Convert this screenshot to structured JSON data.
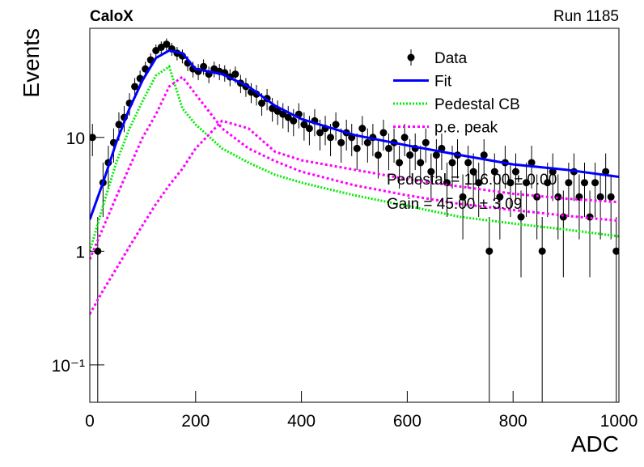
{
  "chart_data": {
    "type": "line",
    "title": "CaloX",
    "subtitle": "Run 1185",
    "x_label": "ADC",
    "y_label": "Events",
    "log_y": true,
    "xlim": [
      0,
      1000
    ],
    "ylim": [
      0.047,
      91
    ],
    "xticks": [
      0,
      200,
      400,
      600,
      800,
      1000
    ],
    "yticks": [
      {
        "value": 0.1,
        "label": "10⁻¹"
      },
      1,
      10
    ],
    "legend": "top-right",
    "annotations": [
      "Pedestal = 116.00 ± 0.00",
      "Gain = 45.00 ± 3.09"
    ],
    "series": [
      {
        "name": "Data",
        "color": "#000000",
        "style": "points",
        "x": [
          5,
          15,
          25,
          35,
          45,
          55,
          65,
          75,
          85,
          95,
          105,
          115,
          125,
          135,
          145,
          155,
          165,
          175,
          185,
          195,
          205,
          215,
          225,
          235,
          245,
          255,
          265,
          275,
          285,
          295,
          305,
          315,
          325,
          335,
          345,
          355,
          365,
          375,
          385,
          395,
          405,
          415,
          425,
          435,
          445,
          455,
          465,
          475,
          485,
          495,
          505,
          515,
          525,
          535,
          545,
          555,
          565,
          575,
          585,
          595,
          605,
          615,
          625,
          635,
          645,
          655,
          665,
          675,
          685,
          695,
          705,
          715,
          725,
          735,
          745,
          755,
          765,
          775,
          785,
          795,
          805,
          815,
          825,
          835,
          845,
          855,
          865,
          875,
          885,
          895,
          905,
          915,
          925,
          935,
          945,
          955,
          965,
          975,
          985,
          995
        ],
        "values": [
          10,
          1,
          4,
          6,
          9,
          13,
          15,
          20,
          28,
          33,
          40,
          48,
          58,
          62,
          66,
          60,
          55,
          52,
          45,
          40,
          38,
          42,
          36,
          40,
          38,
          37,
          34,
          36,
          30,
          28,
          25,
          24,
          20,
          22,
          18,
          17,
          16,
          15,
          14,
          16,
          13,
          12,
          14,
          11,
          12,
          10,
          13,
          9,
          11,
          10,
          8,
          12,
          9,
          10,
          7,
          11,
          8,
          9,
          6,
          10,
          7,
          8,
          6,
          9,
          5,
          7,
          8,
          4,
          6,
          7,
          3,
          6,
          5,
          4,
          7,
          1,
          5,
          3,
          6,
          4,
          5,
          2,
          4,
          6,
          3,
          1,
          4,
          5,
          3,
          2,
          4,
          5,
          3,
          4,
          2,
          4,
          3,
          5,
          3,
          1
        ],
        "errors": [
          3.16,
          1,
          2,
          2.45,
          3,
          3.61,
          3.87,
          4.47,
          5.29,
          5.74,
          6.32,
          6.93,
          7.62,
          7.87,
          8.12,
          7.75,
          7.42,
          7.21,
          6.71,
          6.32,
          6.16,
          6.48,
          6,
          6.32,
          6.16,
          6.08,
          5.83,
          6,
          5.48,
          5.29,
          5,
          4.9,
          4.47,
          4.69,
          4.24,
          4.12,
          4,
          3.87,
          3.74,
          4,
          3.61,
          3.46,
          3.74,
          3.32,
          3.46,
          3.16,
          3.61,
          3,
          3.32,
          3.16,
          2.83,
          3.46,
          3,
          3.16,
          2.65,
          3.32,
          2.83,
          3,
          2.45,
          3.16,
          2.65,
          2.83,
          2.45,
          3,
          2.24,
          2.65,
          2.83,
          2,
          2.45,
          2.65,
          1.73,
          2.45,
          2.24,
          2,
          2.65,
          1,
          2.24,
          1.73,
          2.45,
          2,
          2.24,
          1.41,
          2,
          2.45,
          1.73,
          1,
          2,
          2.24,
          1.73,
          1.41,
          2,
          2.24,
          1.73,
          2,
          1.41,
          2,
          1.73,
          2.24,
          1.73,
          1
        ]
      },
      {
        "name": "Fit",
        "color": "#0000ff",
        "style": "solid",
        "x": [
          0,
          25,
          50,
          75,
          100,
          125,
          150,
          175,
          200,
          250,
          300,
          350,
          400,
          500,
          600,
          700,
          800,
          900,
          1000
        ],
        "values": [
          1.9,
          4,
          9,
          18,
          32,
          50,
          58,
          55,
          40,
          36,
          28,
          19,
          14.5,
          10.5,
          8.5,
          7,
          5.8,
          5.2,
          4.5
        ]
      },
      {
        "name": "Pedestal CB",
        "color": "#00ee00",
        "style": "dotted",
        "x": [
          0,
          25,
          50,
          75,
          100,
          125,
          150,
          175,
          200,
          250,
          300,
          350,
          400,
          500,
          600,
          700,
          800,
          900,
          1000
        ],
        "values": [
          1,
          2.5,
          6,
          12,
          21,
          35,
          42,
          18,
          13,
          8,
          6,
          4.7,
          4,
          3.1,
          2.5,
          2,
          1.75,
          1.55,
          1.35
        ]
      },
      {
        "name": "p.e. peak",
        "color": "#ff00ff",
        "style": "dashed",
        "x": [
          0,
          25,
          50,
          75,
          100,
          125,
          150,
          175,
          200,
          250,
          300,
          350,
          400,
          500,
          600,
          700,
          800,
          900,
          1000
        ],
        "values": [
          [
            0.85,
            1.6,
            3,
            5.5,
            10,
            16,
            28,
            34,
            24,
            12,
            8,
            6.2,
            5,
            3.8,
            3.1,
            2.6,
            2.3,
            2.05,
            1.85
          ],
          [
            0.28,
            0.45,
            0.7,
            1.1,
            1.7,
            2.6,
            3.8,
            5.3,
            8,
            14,
            12,
            7.5,
            6.3,
            5.2,
            4.3,
            3.7,
            3.2,
            2.9,
            2.7
          ]
        ]
      }
    ]
  }
}
